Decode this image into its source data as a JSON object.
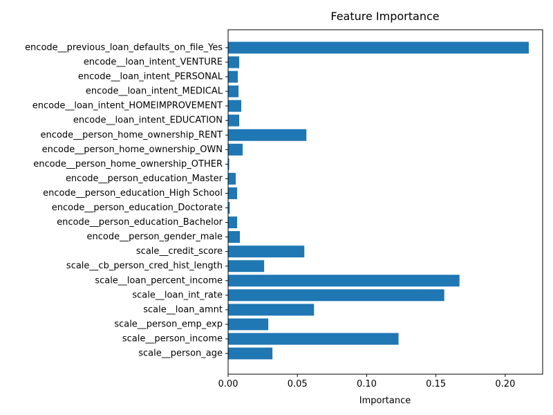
{
  "chart_data": {
    "type": "bar",
    "orientation": "horizontal",
    "title": "Feature Importance",
    "xlabel": "Importance",
    "ylabel": "",
    "xlim": [
      0,
      0.227
    ],
    "xticks": [
      0.0,
      0.05,
      0.1,
      0.15,
      0.2
    ],
    "xtick_labels": [
      "0.00",
      "0.05",
      "0.10",
      "0.15",
      "0.20"
    ],
    "grid": false,
    "bar_color": "#1f77b4",
    "categories": [
      "scale__person_age",
      "scale__person_income",
      "scale__person_emp_exp",
      "scale__loan_amnt",
      "scale__loan_int_rate",
      "scale__loan_percent_income",
      "scale__cb_person_cred_hist_length",
      "scale__credit_score",
      "encode__person_gender_male",
      "encode__person_education_Bachelor",
      "encode__person_education_Doctorate",
      "encode__person_education_High School",
      "encode__person_education_Master",
      "encode__person_home_ownership_OTHER",
      "encode__person_home_ownership_OWN",
      "encode__person_home_ownership_RENT",
      "encode__loan_intent_EDUCATION",
      "encode__loan_intent_HOMEIMPROVEMENT",
      "encode__loan_intent_MEDICAL",
      "encode__loan_intent_PERSONAL",
      "encode__loan_intent_VENTURE",
      "encode__previous_loan_defaults_on_file_Yes"
    ],
    "values": [
      0.032,
      0.123,
      0.029,
      0.062,
      0.156,
      0.167,
      0.026,
      0.055,
      0.0085,
      0.0065,
      0.0012,
      0.0065,
      0.0055,
      0.0008,
      0.0105,
      0.0565,
      0.008,
      0.0095,
      0.0075,
      0.007,
      0.008,
      0.217
    ]
  }
}
